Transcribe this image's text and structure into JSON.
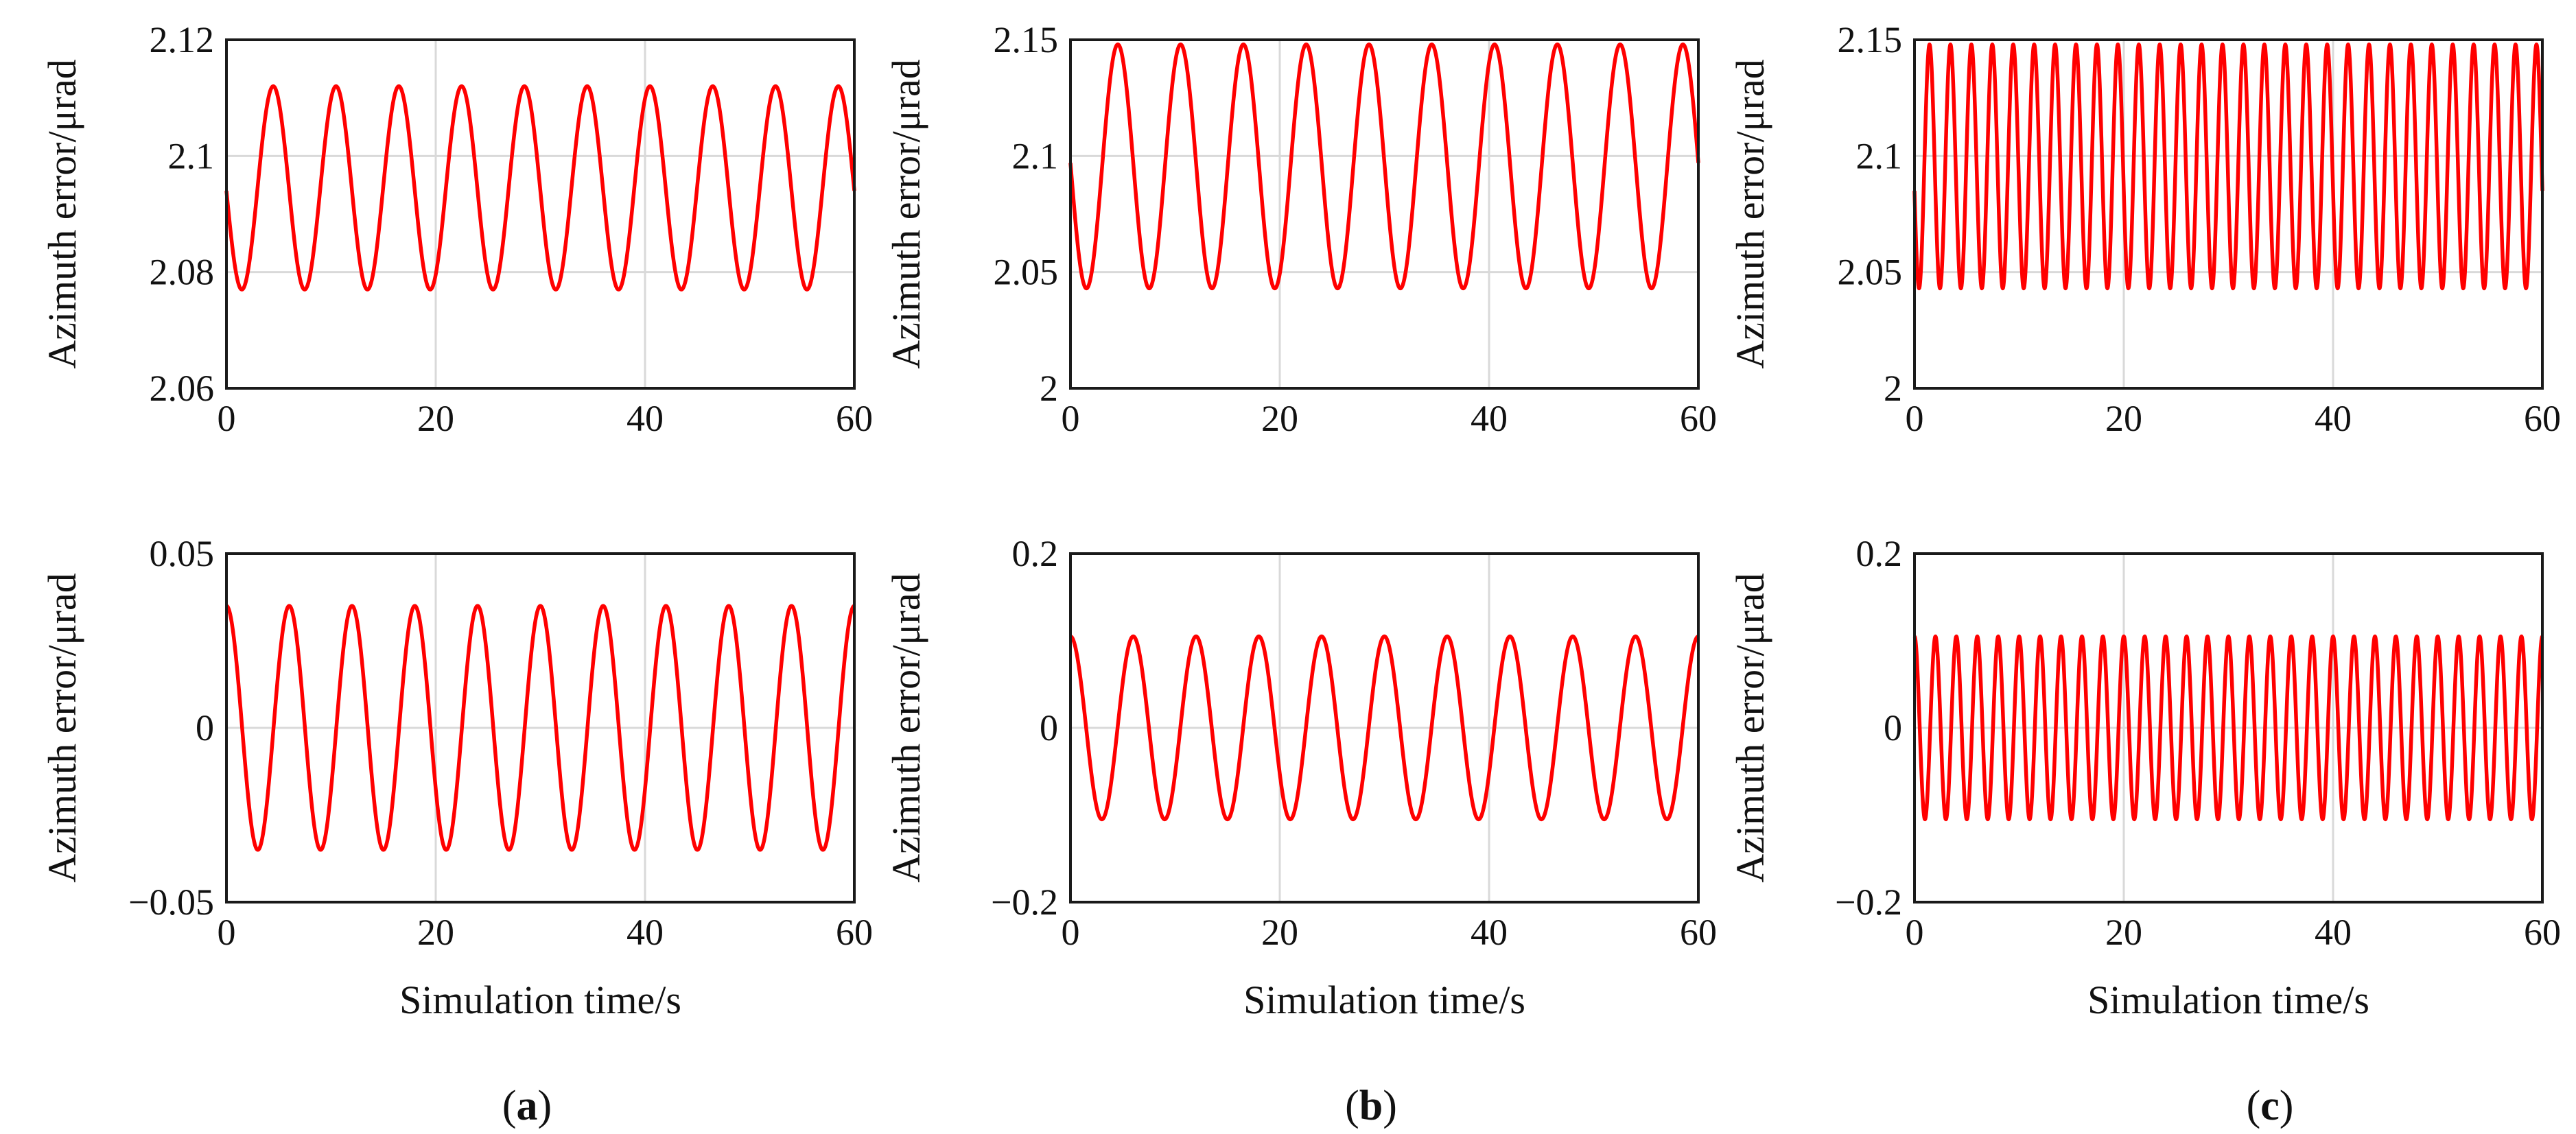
{
  "colors": {
    "line": "#ff0000",
    "grid": "#d9d9d9",
    "axis": "#1a1a1a"
  },
  "panel_labels": [
    {
      "open": "(",
      "letter": "a",
      "close": ")"
    },
    {
      "open": "(",
      "letter": "b",
      "close": ")"
    },
    {
      "open": "(",
      "letter": "c",
      "close": ")"
    }
  ],
  "chart_data": [
    {
      "id": "a-top",
      "type": "line",
      "column": "a",
      "row": "top",
      "ylabel": "Azimuth error/μrad",
      "xlabel": "",
      "xlim": [
        0,
        60
      ],
      "ylim": [
        2.06,
        2.12
      ],
      "xticks": [
        0,
        20,
        40,
        60
      ],
      "xtick_labels": [
        "0",
        "20",
        "40",
        "60"
      ],
      "yticks": [
        2.06,
        2.08,
        2.1,
        2.12
      ],
      "ytick_labels": [
        "2.06",
        "2.08",
        "2.1",
        "2.12"
      ],
      "grid": true,
      "series": [
        {
          "name": "azimuth error",
          "function": "sinusoid",
          "mean": 2.0945,
          "amplitude": 0.0175,
          "period": 6.0,
          "start_value": 2.094,
          "initial_direction": "down"
        }
      ]
    },
    {
      "id": "b-top",
      "type": "line",
      "column": "b",
      "row": "top",
      "ylabel": "Azimuth error/μrad",
      "xlabel": "",
      "xlim": [
        0,
        60
      ],
      "ylim": [
        2.0,
        2.15
      ],
      "xticks": [
        0,
        20,
        40,
        60
      ],
      "xtick_labels": [
        "0",
        "20",
        "40",
        "60"
      ],
      "yticks": [
        2.0,
        2.05,
        2.1,
        2.15
      ],
      "ytick_labels": [
        "2",
        "2.05",
        "2.1",
        "2.15"
      ],
      "grid": true,
      "series": [
        {
          "name": "azimuth error",
          "function": "sinusoid",
          "mean": 2.0955,
          "amplitude": 0.0525,
          "period": 6.0,
          "start_value": 2.097,
          "initial_direction": "down"
        }
      ]
    },
    {
      "id": "c-top",
      "type": "line",
      "column": "c",
      "row": "top",
      "ylabel": "Azimuth error/μrad",
      "xlabel": "",
      "xlim": [
        0,
        60
      ],
      "ylim": [
        2.0,
        2.15
      ],
      "xticks": [
        0,
        20,
        40,
        60
      ],
      "xtick_labels": [
        "0",
        "20",
        "40",
        "60"
      ],
      "yticks": [
        2.0,
        2.05,
        2.1,
        2.15
      ],
      "ytick_labels": [
        "2",
        "2.05",
        "2.1",
        "2.15"
      ],
      "grid": true,
      "series": [
        {
          "name": "azimuth error",
          "function": "sinusoid",
          "mean": 2.0955,
          "amplitude": 0.0525,
          "period": 2.0,
          "start_value": 2.085,
          "initial_direction": "down"
        }
      ]
    },
    {
      "id": "a-bottom",
      "type": "line",
      "column": "a",
      "row": "bottom",
      "ylabel": "Azimuth error/μrad",
      "xlabel": "Simulation time/s",
      "xlim": [
        0,
        60
      ],
      "ylim": [
        -0.05,
        0.05
      ],
      "xticks": [
        0,
        20,
        40,
        60
      ],
      "xtick_labels": [
        "0",
        "20",
        "40",
        "60"
      ],
      "yticks": [
        -0.05,
        0,
        0.05
      ],
      "ytick_labels": [
        "−0.05",
        "0",
        "0.05"
      ],
      "grid": true,
      "series": [
        {
          "name": "azimuth error",
          "function": "sinusoid",
          "mean": 0,
          "amplitude": 0.035,
          "period": 6.0,
          "start_value": 0.035,
          "initial_direction": "down"
        }
      ]
    },
    {
      "id": "b-bottom",
      "type": "line",
      "column": "b",
      "row": "bottom",
      "ylabel": "Azimuth error/μrad",
      "xlabel": "Simulation time/s",
      "xlim": [
        0,
        60
      ],
      "ylim": [
        -0.2,
        0.2
      ],
      "xticks": [
        0,
        20,
        40,
        60
      ],
      "xtick_labels": [
        "0",
        "20",
        "40",
        "60"
      ],
      "yticks": [
        -0.2,
        0,
        0.2
      ],
      "ytick_labels": [
        "−0.2",
        "0",
        "0.2"
      ],
      "grid": true,
      "series": [
        {
          "name": "azimuth error",
          "function": "sinusoid",
          "mean": 0,
          "amplitude": 0.105,
          "period": 6.0,
          "start_value": 0.105,
          "initial_direction": "down"
        }
      ]
    },
    {
      "id": "c-bottom",
      "type": "line",
      "column": "c",
      "row": "bottom",
      "ylabel": "Azimuth error/μrad",
      "xlabel": "Simulation time/s",
      "xlim": [
        0,
        60
      ],
      "ylim": [
        -0.2,
        0.2
      ],
      "xticks": [
        0,
        20,
        40,
        60
      ],
      "xtick_labels": [
        "0",
        "20",
        "40",
        "60"
      ],
      "yticks": [
        -0.2,
        0,
        0.2
      ],
      "ytick_labels": [
        "−0.2",
        "0",
        "0.2"
      ],
      "grid": true,
      "series": [
        {
          "name": "azimuth error",
          "function": "sinusoid",
          "mean": 0,
          "amplitude": 0.105,
          "period": 2.0,
          "start_value": 0.105,
          "initial_direction": "down"
        }
      ]
    }
  ]
}
